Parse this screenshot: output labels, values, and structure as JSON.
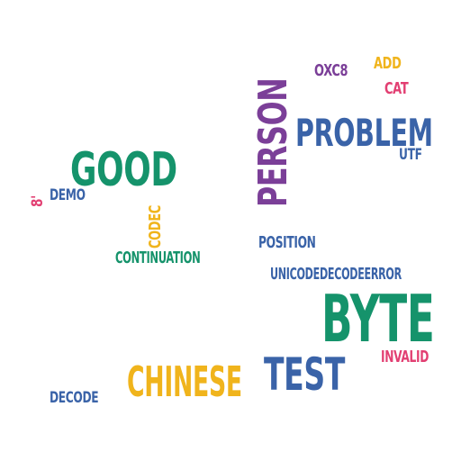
{
  "colors": {
    "purple": "#7b3f98",
    "blue": "#3a63a8",
    "green": "#15936b",
    "yellow": "#f0b41c",
    "pink": "#e23f72"
  },
  "words": {
    "person": "PERSON",
    "problem": "PROBLEM",
    "oxc8": "OXC8",
    "add": "ADD",
    "cat": "CAT",
    "utf": "UTF",
    "good": "GOOD",
    "demo": "DEMO",
    "eight": "8'",
    "codec": "CODEC",
    "continuation": "CONTINUATION",
    "position": "POSITION",
    "unicodedecodeerror": "UNICODEDECODEERROR",
    "byte": "BYTE",
    "invalid": "INVALID",
    "chinese": "CHINESE",
    "test": "TEST",
    "decode": "DECODE"
  }
}
